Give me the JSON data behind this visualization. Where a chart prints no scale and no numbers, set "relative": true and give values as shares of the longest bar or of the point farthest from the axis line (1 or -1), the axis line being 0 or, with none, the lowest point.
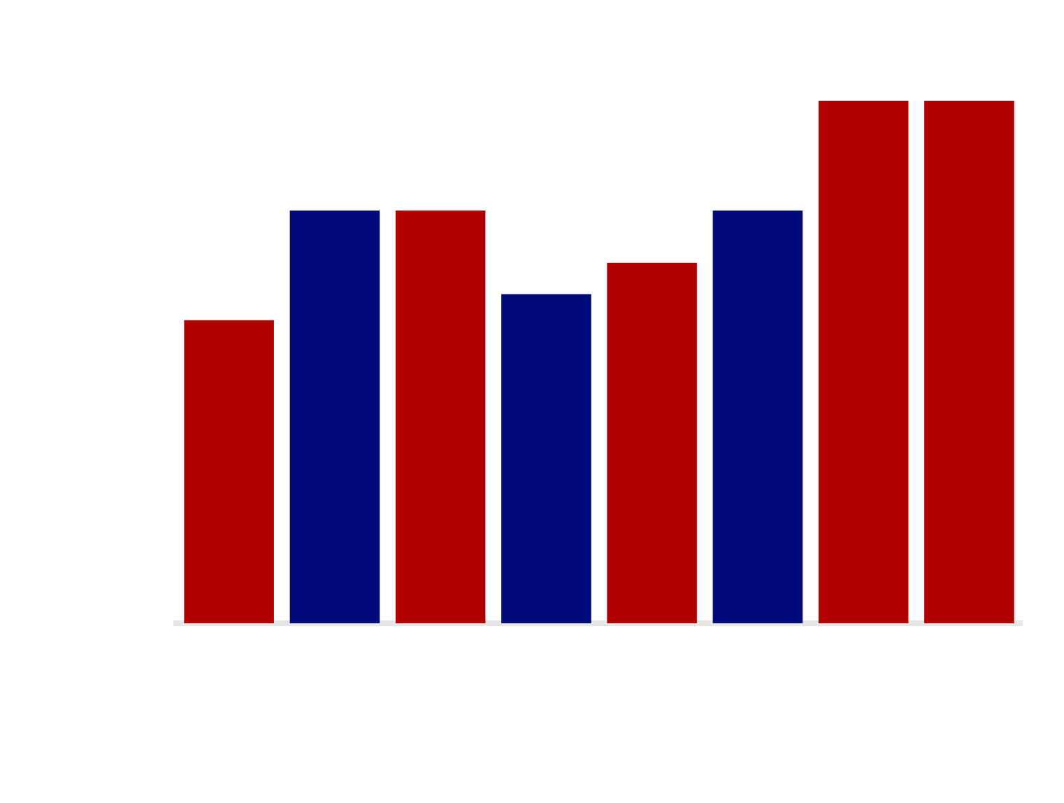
{
  "chart_data": {
    "type": "bar",
    "relative": true,
    "categories": [
      null,
      null,
      null,
      null,
      null,
      null,
      null,
      null
    ],
    "values": [
      0.58,
      0.79,
      0.79,
      0.63,
      0.69,
      0.79,
      1,
      1
    ],
    "colors": [
      "#b20000",
      "#000a78",
      "#b20000",
      "#000a78",
      "#b20000",
      "#000a78",
      "#b20000",
      "#b20000"
    ],
    "grid": false,
    "legend": false
  }
}
